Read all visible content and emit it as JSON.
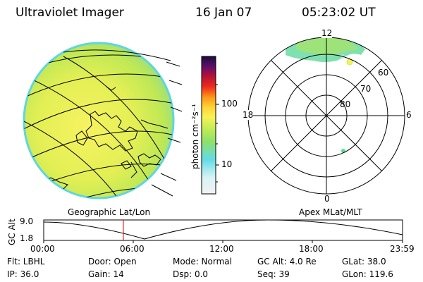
{
  "header": {
    "title": "Ultraviolet Imager",
    "date": "16 Jan 07",
    "time": "05:23:02 UT"
  },
  "colorbar": {
    "unit_label": "photon cm⁻²s⁻¹",
    "ticks": [
      "100",
      "10"
    ],
    "colors": [
      "#f2f2f2",
      "#d7f3f5",
      "#63dbe5",
      "#8ee06a",
      "#c7ec55",
      "#f7f255",
      "#ffd23a",
      "#ff9b19",
      "#ee2a1a",
      "#b0103a",
      "#5a0e68",
      "#1b0d3c"
    ]
  },
  "left_panel": {
    "caption": "Geographic Lat/Lon"
  },
  "right_panel": {
    "caption": "Apex MLat/MLT",
    "mlt_labels": {
      "top": "12",
      "bottom": "0",
      "left": "18",
      "right": "6"
    },
    "lat_labels": [
      "60",
      "70",
      "80"
    ]
  },
  "altitude_plot": {
    "ylabel": "GC Alt",
    "yticks": [
      "9.0",
      "1.8"
    ],
    "xticks": [
      "00:00",
      "06:00",
      "12:00",
      "18:00",
      "23:59"
    ],
    "marker_time": "05:23"
  },
  "info": {
    "flt": "Flt: LBHL",
    "ip": "IP: 36.0",
    "door": "Door: Open",
    "gain": "Gain: 14",
    "mode": "Mode: Normal",
    "dsp": "Dsp:      0.0",
    "gc_alt": "GC Alt: 4.0 Re",
    "seq": "Seq: 39",
    "glat": "GLat:   38.0",
    "glon": "GLon: 119.6"
  }
}
